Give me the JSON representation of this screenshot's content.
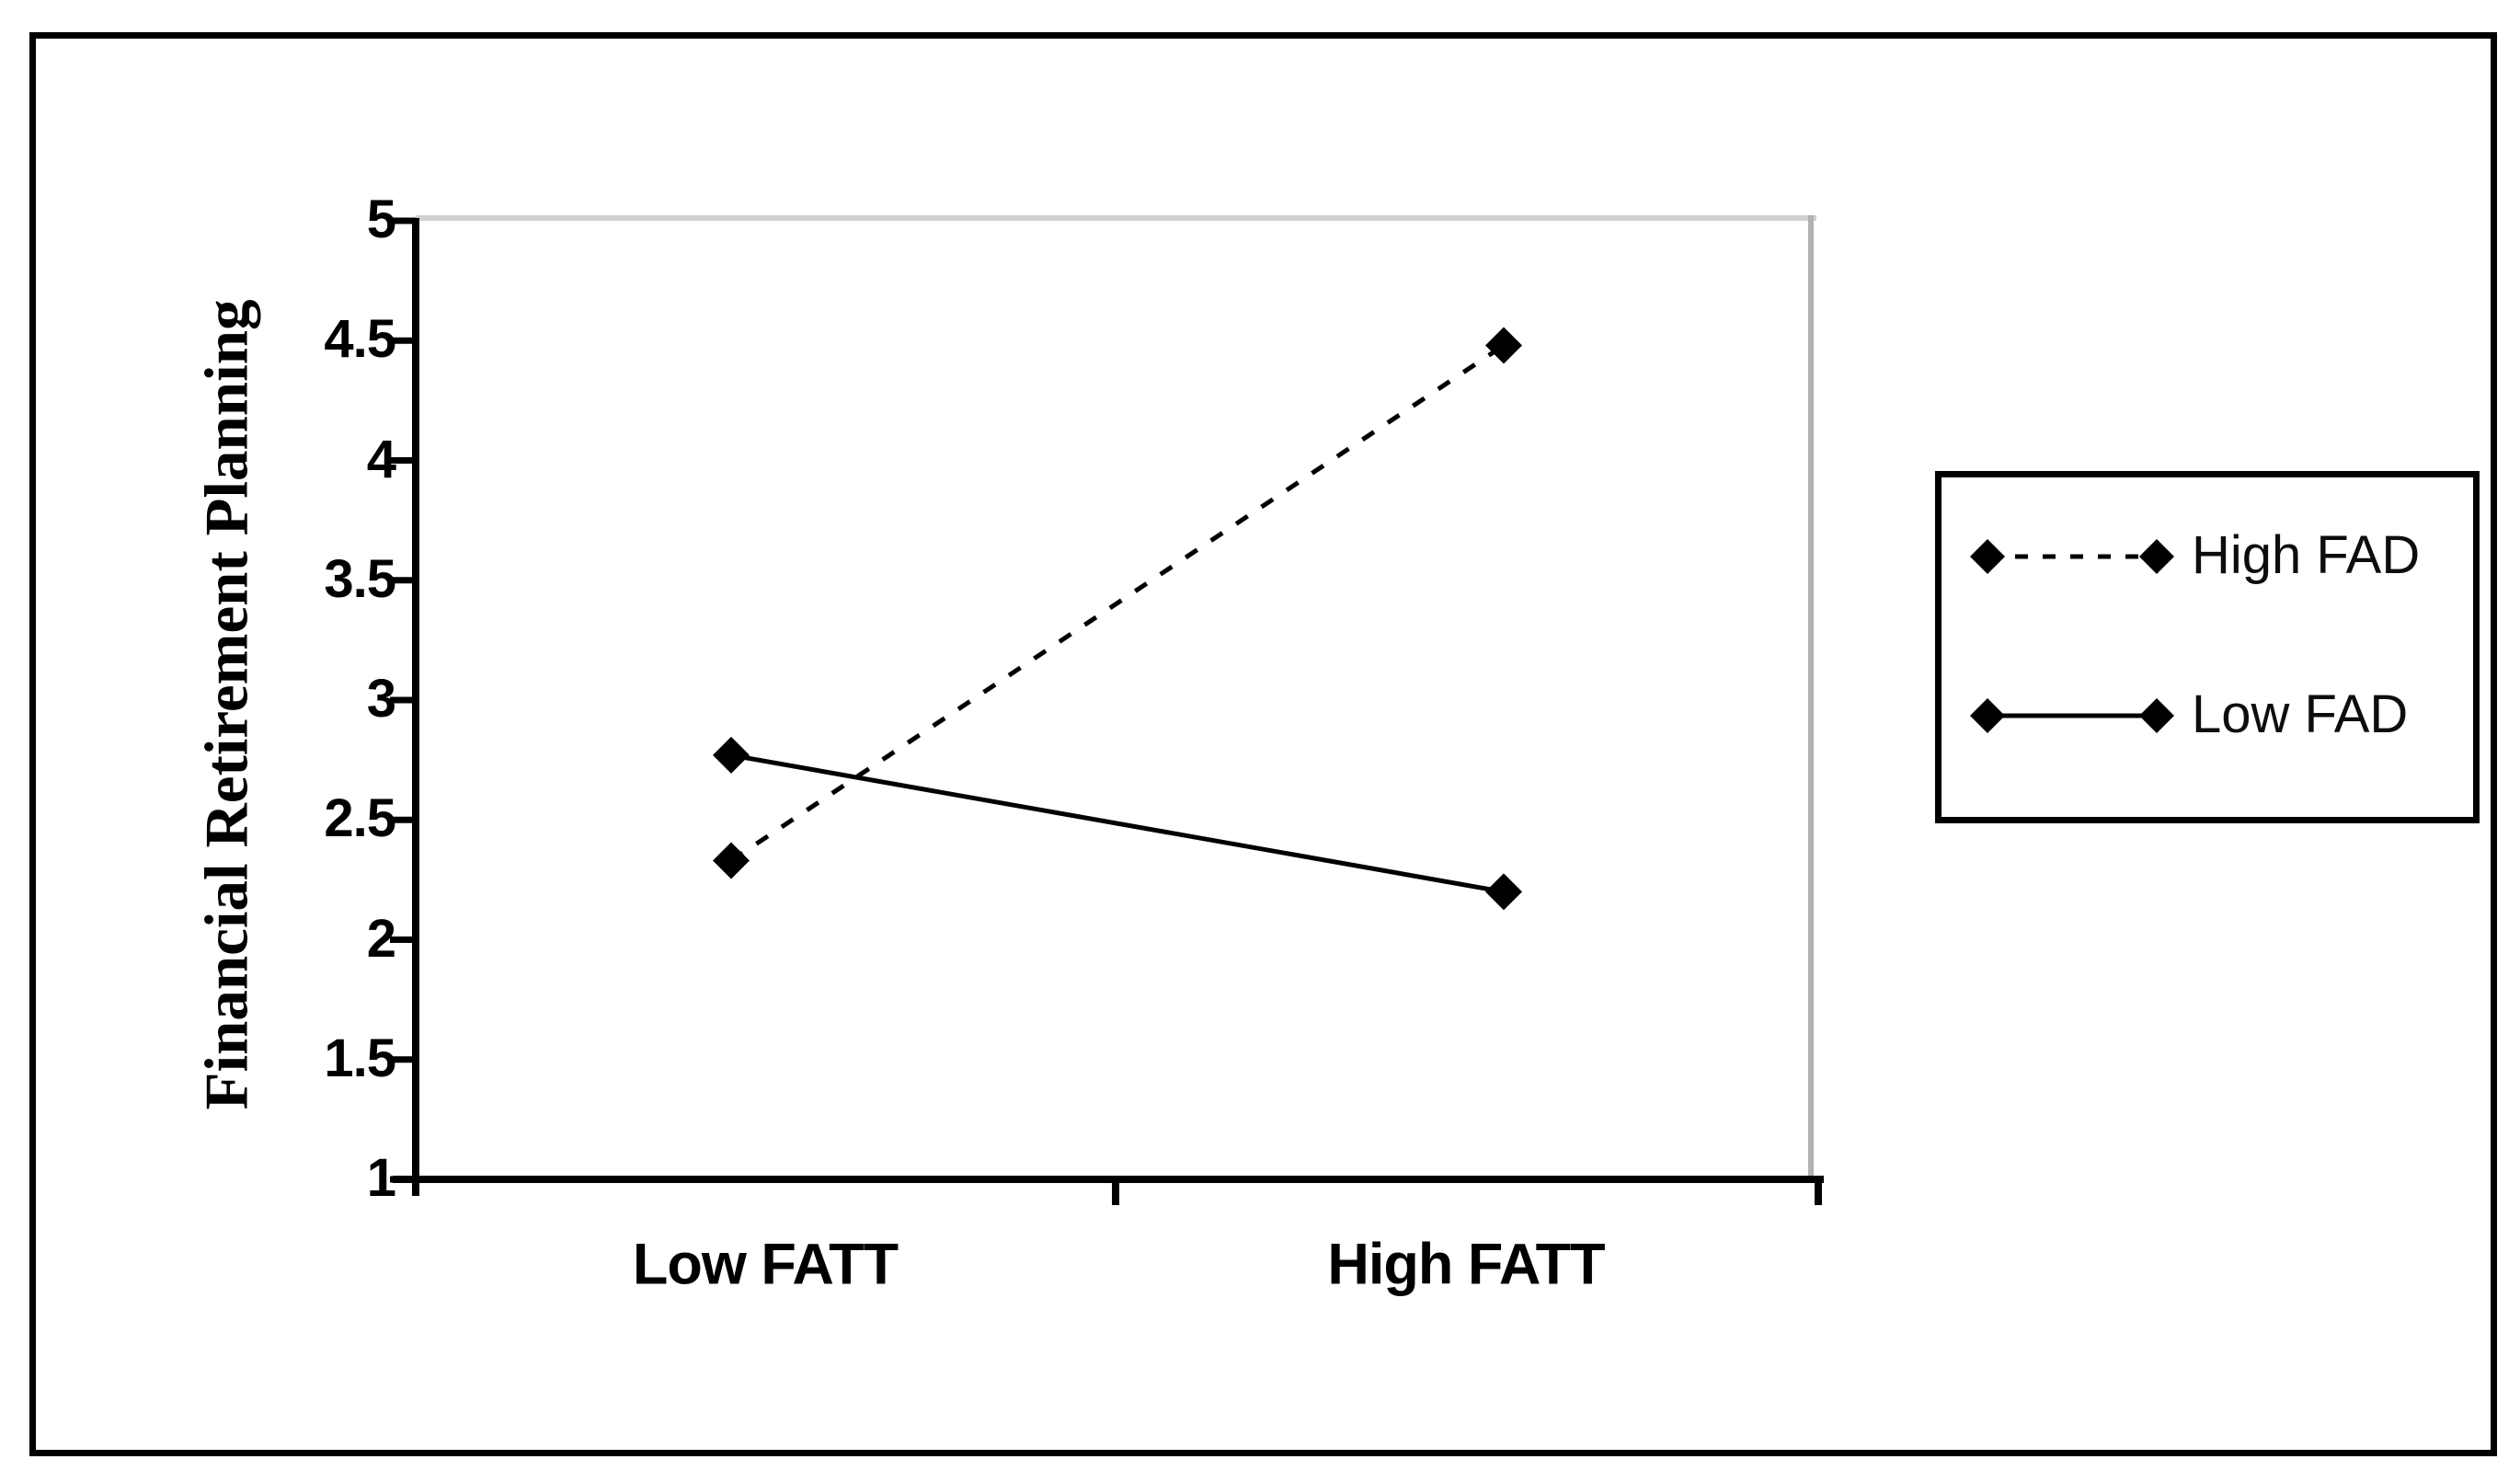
{
  "figure": {
    "background": "#ffffff",
    "border_color": "#000000"
  },
  "colors": {
    "ink": "#000000",
    "plot_top_border": "#d2d0cd",
    "plot_right_border": "#b3b1ae",
    "legend_border": "#000000"
  },
  "chart_data": {
    "type": "line",
    "categories": [
      "Low FATT",
      "High FATT"
    ],
    "series": [
      {
        "name": "High FAD",
        "values": [
          2.33,
          4.48
        ],
        "line_style": "dashed",
        "marker": "diamond",
        "color": "#000000"
      },
      {
        "name": "Low FAD",
        "values": [
          2.77,
          2.2
        ],
        "line_style": "solid",
        "marker": "diamond",
        "color": "#000000"
      }
    ],
    "title": "",
    "xlabel": "",
    "ylabel": "Financial Retirement Planning",
    "ylim": [
      1,
      5
    ],
    "yticks": [
      5,
      4.5,
      4,
      3.5,
      3,
      2.5,
      2,
      1.5,
      1
    ],
    "grid": false,
    "legend_position": "right-outside"
  }
}
